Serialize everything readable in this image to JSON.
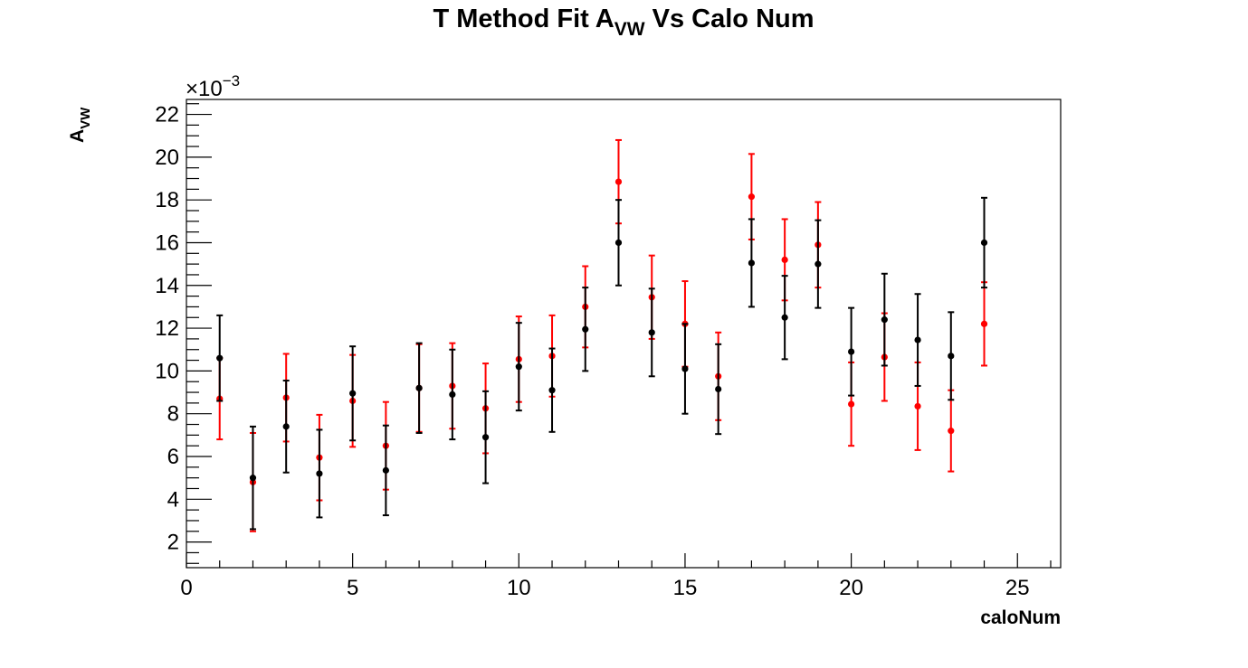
{
  "chart_data": {
    "type": "scatter",
    "title": "T Method Fit A",
    "title_sub": "VW",
    "title_suffix": " Vs Calo Num",
    "xlabel": "caloNum",
    "ylabel": "A",
    "ylabel_sub": "VW",
    "y_multiplier_base": "×10",
    "y_multiplier_exp": "−3",
    "xlim": [
      0,
      26.3
    ],
    "ylim": [
      0.8,
      22.7
    ],
    "x_ticks": [
      0,
      5,
      10,
      15,
      20,
      25
    ],
    "y_ticks": [
      2,
      4,
      6,
      8,
      10,
      12,
      14,
      16,
      18,
      20,
      22
    ],
    "grid": false,
    "legend": "none",
    "series": [
      {
        "color": "#ff0000",
        "points": [
          {
            "x": 1,
            "y": 8.7,
            "err": 1.9
          },
          {
            "x": 2,
            "y": 4.8,
            "err": 2.3
          },
          {
            "x": 3,
            "y": 8.75,
            "err": 2.05
          },
          {
            "x": 4,
            "y": 5.95,
            "err": 2.0
          },
          {
            "x": 5,
            "y": 8.6,
            "err": 2.15
          },
          {
            "x": 6,
            "y": 6.5,
            "err": 2.05
          },
          {
            "x": 7,
            "y": 9.2,
            "err": 2.05
          },
          {
            "x": 8,
            "y": 9.3,
            "err": 2.0
          },
          {
            "x": 9,
            "y": 8.25,
            "err": 2.1
          },
          {
            "x": 10,
            "y": 10.55,
            "err": 2.0
          },
          {
            "x": 11,
            "y": 10.7,
            "err": 1.9
          },
          {
            "x": 12,
            "y": 13.0,
            "err": 1.9
          },
          {
            "x": 13,
            "y": 18.85,
            "err": 1.95
          },
          {
            "x": 14,
            "y": 13.45,
            "err": 1.95
          },
          {
            "x": 15,
            "y": 12.2,
            "err": 2.0
          },
          {
            "x": 16,
            "y": 9.75,
            "err": 2.05
          },
          {
            "x": 17,
            "y": 18.15,
            "err": 2.0
          },
          {
            "x": 18,
            "y": 15.2,
            "err": 1.9
          },
          {
            "x": 19,
            "y": 15.9,
            "err": 2.0
          },
          {
            "x": 20,
            "y": 8.45,
            "err": 1.95
          },
          {
            "x": 21,
            "y": 10.65,
            "err": 2.05
          },
          {
            "x": 22,
            "y": 8.35,
            "err": 2.05
          },
          {
            "x": 23,
            "y": 7.2,
            "err": 1.9
          },
          {
            "x": 24,
            "y": 12.2,
            "err": 1.95
          }
        ]
      },
      {
        "color": "#000000",
        "points": [
          {
            "x": 1,
            "y": 10.6,
            "err": 2.0
          },
          {
            "x": 2,
            "y": 5.0,
            "err": 2.4
          },
          {
            "x": 3,
            "y": 7.4,
            "err": 2.15
          },
          {
            "x": 4,
            "y": 5.2,
            "err": 2.05
          },
          {
            "x": 5,
            "y": 8.95,
            "err": 2.2
          },
          {
            "x": 6,
            "y": 5.35,
            "err": 2.1
          },
          {
            "x": 7,
            "y": 9.2,
            "err": 2.1
          },
          {
            "x": 8,
            "y": 8.9,
            "err": 2.1
          },
          {
            "x": 9,
            "y": 6.9,
            "err": 2.15
          },
          {
            "x": 10,
            "y": 10.2,
            "err": 2.05
          },
          {
            "x": 11,
            "y": 9.1,
            "err": 1.95
          },
          {
            "x": 12,
            "y": 11.95,
            "err": 1.95
          },
          {
            "x": 13,
            "y": 16.0,
            "err": 2.0
          },
          {
            "x": 14,
            "y": 11.8,
            "err": 2.05
          },
          {
            "x": 15,
            "y": 10.1,
            "err": 2.1
          },
          {
            "x": 16,
            "y": 9.15,
            "err": 2.1
          },
          {
            "x": 17,
            "y": 15.05,
            "err": 2.05
          },
          {
            "x": 18,
            "y": 12.5,
            "err": 1.95
          },
          {
            "x": 19,
            "y": 15.0,
            "err": 2.05
          },
          {
            "x": 20,
            "y": 10.9,
            "err": 2.05
          },
          {
            "x": 21,
            "y": 12.4,
            "err": 2.15
          },
          {
            "x": 22,
            "y": 11.45,
            "err": 2.15
          },
          {
            "x": 23,
            "y": 10.7,
            "err": 2.05
          },
          {
            "x": 24,
            "y": 16.0,
            "err": 2.1
          }
        ]
      }
    ]
  }
}
